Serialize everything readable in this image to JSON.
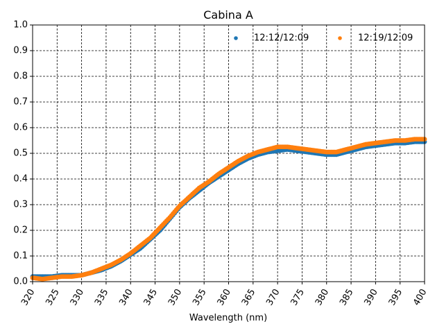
{
  "chart_data": {
    "type": "scatter",
    "title": "Cabina A",
    "xlabel": "Wavelength (nm)",
    "ylabel": "",
    "xlim": [
      320,
      400
    ],
    "ylim": [
      0.0,
      1.0
    ],
    "xticks": [
      "320",
      "325",
      "330",
      "335",
      "340",
      "345",
      "350",
      "355",
      "360",
      "365",
      "370",
      "375",
      "380",
      "385",
      "390",
      "395",
      "400"
    ],
    "yticks": [
      "0.0",
      "0.1",
      "0.2",
      "0.3",
      "0.4",
      "0.5",
      "0.6",
      "0.7",
      "0.8",
      "0.9",
      "1.0"
    ],
    "grid": true,
    "legend_position": "top-right",
    "series": [
      {
        "name": "12:12/12:09",
        "color": "#1f77b4",
        "x": [
          320,
          322,
          324,
          326,
          328,
          330,
          332,
          334,
          336,
          338,
          340,
          342,
          344,
          346,
          348,
          350,
          352,
          354,
          356,
          358,
          360,
          362,
          364,
          366,
          368,
          370,
          372,
          374,
          376,
          378,
          380,
          382,
          384,
          386,
          388,
          390,
          392,
          394,
          396,
          398,
          400
        ],
        "y": [
          0.02,
          0.02,
          0.02,
          0.025,
          0.025,
          0.025,
          0.035,
          0.045,
          0.06,
          0.08,
          0.105,
          0.13,
          0.165,
          0.2,
          0.245,
          0.29,
          0.325,
          0.355,
          0.385,
          0.41,
          0.435,
          0.46,
          0.48,
          0.495,
          0.505,
          0.51,
          0.515,
          0.51,
          0.505,
          0.5,
          0.495,
          0.495,
          0.505,
          0.515,
          0.525,
          0.53,
          0.535,
          0.54,
          0.54,
          0.545,
          0.545
        ]
      },
      {
        "name": "12:19/12:09",
        "color": "#ff7f0e",
        "x": [
          320,
          322,
          324,
          326,
          328,
          330,
          332,
          334,
          336,
          338,
          340,
          342,
          344,
          346,
          348,
          350,
          352,
          354,
          356,
          358,
          360,
          362,
          364,
          366,
          368,
          370,
          372,
          374,
          376,
          378,
          380,
          382,
          384,
          386,
          388,
          390,
          392,
          394,
          396,
          398,
          400
        ],
        "y": [
          0.015,
          0.01,
          0.015,
          0.02,
          0.02,
          0.025,
          0.035,
          0.05,
          0.065,
          0.085,
          0.11,
          0.14,
          0.17,
          0.21,
          0.25,
          0.295,
          0.33,
          0.365,
          0.39,
          0.42,
          0.445,
          0.47,
          0.49,
          0.505,
          0.515,
          0.525,
          0.525,
          0.52,
          0.515,
          0.51,
          0.505,
          0.505,
          0.515,
          0.525,
          0.535,
          0.54,
          0.545,
          0.55,
          0.55,
          0.555,
          0.555
        ]
      }
    ]
  }
}
